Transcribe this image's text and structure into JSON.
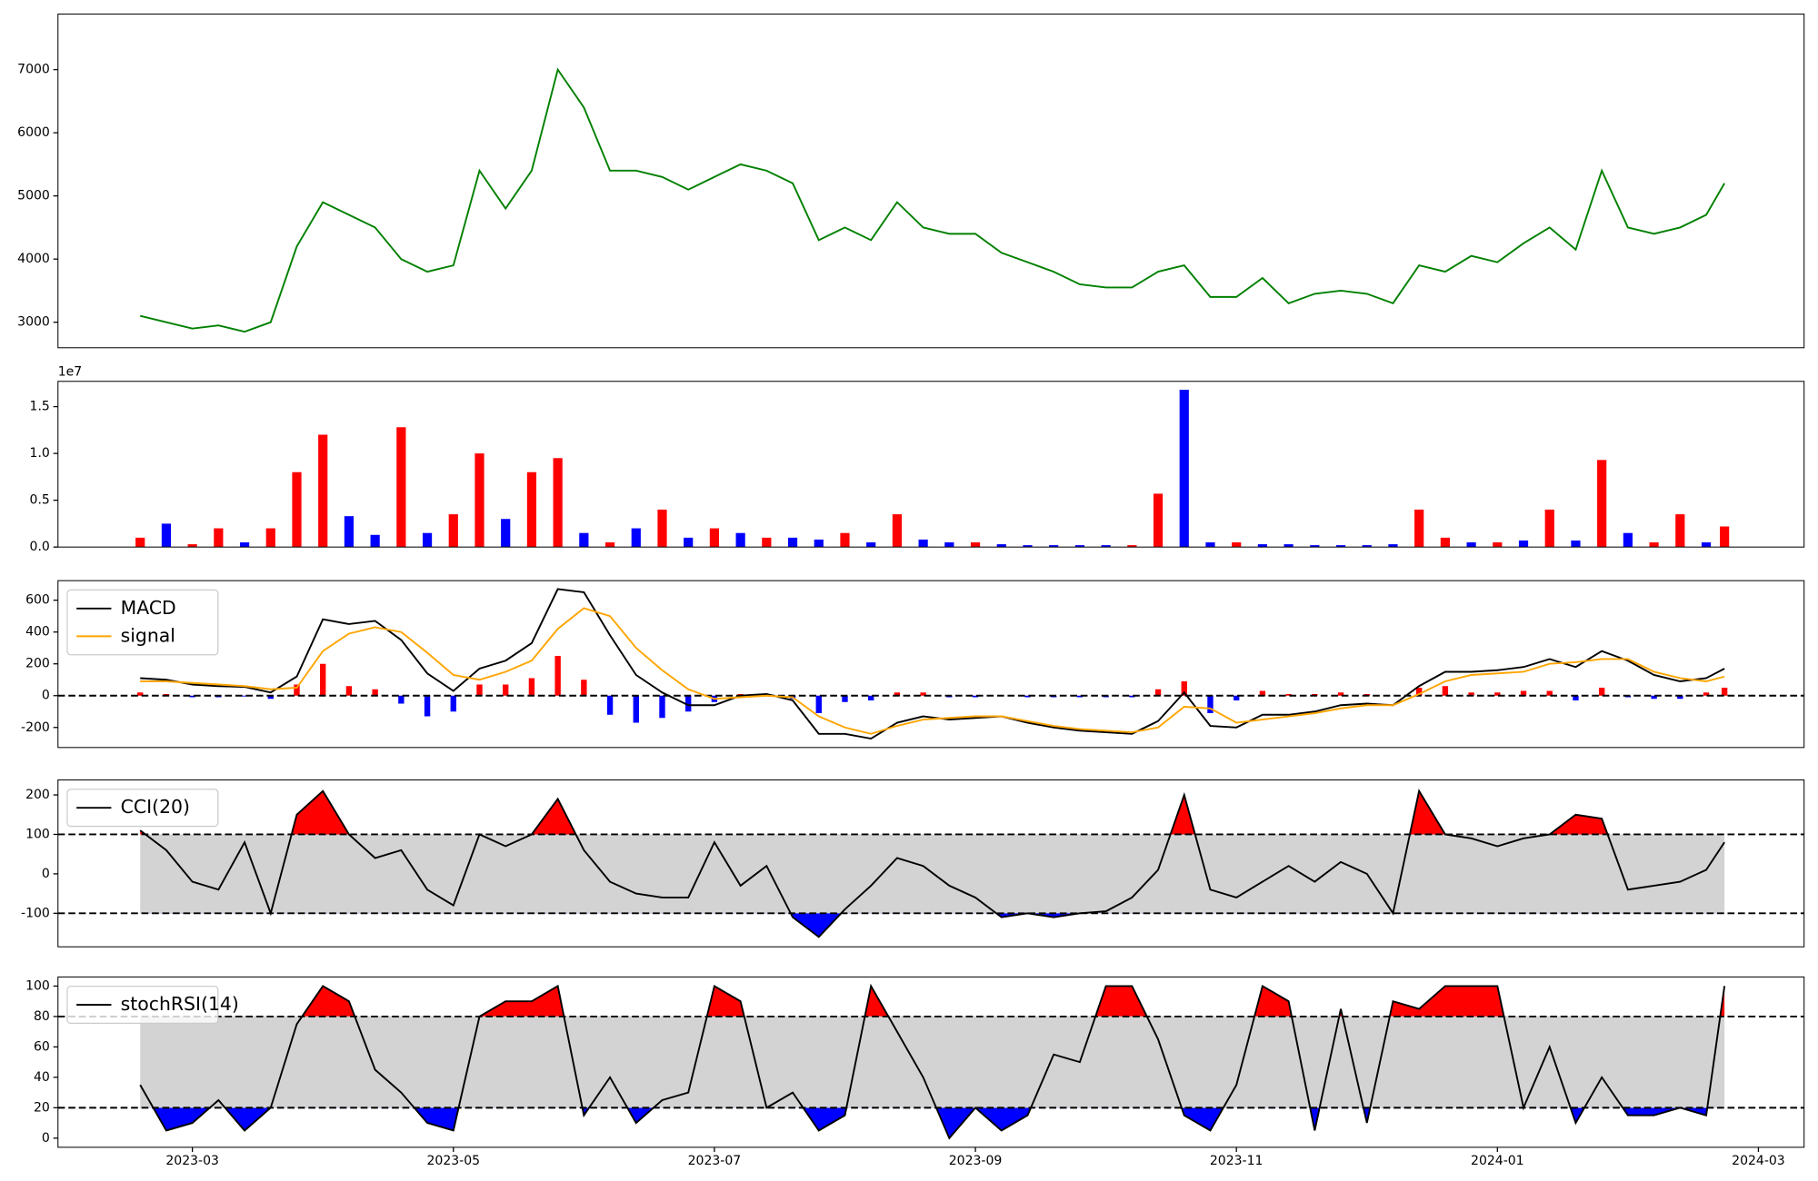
{
  "chart_data": [
    {
      "type": "line",
      "xlim": [
        1.97,
        15.35
      ],
      "x": [
        2.6,
        2.8,
        3.0,
        3.2,
        3.4,
        3.6,
        3.8,
        4.0,
        4.2,
        4.4,
        4.6,
        4.8,
        5.0,
        5.2,
        5.4,
        5.6,
        5.8,
        6.0,
        6.2,
        6.4,
        6.6,
        6.8,
        7.0,
        7.2,
        7.4,
        7.6,
        7.8,
        8.0,
        8.2,
        8.4,
        8.6,
        8.8,
        9.0,
        9.2,
        9.4,
        9.6,
        9.8,
        10.0,
        10.2,
        10.4,
        10.6,
        10.8,
        11.0,
        11.2,
        11.4,
        11.6,
        11.8,
        12.0,
        12.2,
        12.4,
        12.6,
        12.8,
        13.0,
        13.2,
        13.4,
        13.6,
        13.8,
        14.0,
        14.2,
        14.4,
        14.6,
        14.74
      ],
      "ylim": [
        2596,
        7880
      ],
      "yticks": [
        3000,
        4000,
        5000,
        6000,
        7000
      ],
      "series": [
        {
          "color": "green",
          "values": [
            3100,
            3000,
            2900,
            2950,
            2850,
            3000,
            4200,
            4900,
            4700,
            4500,
            4000,
            3800,
            3900,
            5400,
            4800,
            5400,
            7000,
            6400,
            5400,
            5400,
            5300,
            5100,
            5300,
            5500,
            5400,
            5200,
            4300,
            4500,
            4300,
            4900,
            4500,
            4400,
            4400,
            4100,
            3950,
            3800,
            3600,
            3550,
            3550,
            3800,
            3900,
            3400,
            3400,
            3700,
            3300,
            3450,
            3500,
            3450,
            3300,
            3900,
            3800,
            4050,
            3950,
            4250,
            4500,
            4150,
            5400,
            4500,
            4400,
            4500,
            4700,
            5200
          ]
        }
      ]
    },
    {
      "type": "bar",
      "xlim": [
        1.97,
        15.35
      ],
      "x": [
        2.6,
        2.8,
        3.0,
        3.2,
        3.4,
        3.6,
        3.8,
        4.0,
        4.2,
        4.4,
        4.6,
        4.8,
        5.0,
        5.2,
        5.4,
        5.6,
        5.8,
        6.0,
        6.2,
        6.4,
        6.6,
        6.8,
        7.0,
        7.2,
        7.4,
        7.6,
        7.8,
        8.0,
        8.2,
        8.4,
        8.6,
        8.8,
        9.0,
        9.2,
        9.4,
        9.6,
        9.8,
        10.0,
        10.2,
        10.4,
        10.6,
        10.8,
        11.0,
        11.2,
        11.4,
        11.6,
        11.8,
        12.0,
        12.2,
        12.4,
        12.6,
        12.8,
        13.0,
        13.2,
        13.4,
        13.6,
        13.8,
        14.0,
        14.2,
        14.4,
        14.6,
        14.74
      ],
      "ylim": [
        0,
        17700000
      ],
      "yticks": [
        {
          "value": 0,
          "label": "0.0"
        },
        {
          "value": 5000000,
          "label": "0.5"
        },
        {
          "value": 10000000,
          "label": "1.0"
        },
        {
          "value": 15000000,
          "label": "1.5"
        }
      ],
      "offset_label": "1e7",
      "values": [
        1000000,
        2500000,
        300000,
        2000000,
        500000,
        2000000,
        8000000,
        12000000,
        3300000,
        1300000,
        12800000,
        1500000,
        3500000,
        10000000,
        3000000,
        8000000,
        9500000,
        1500000,
        500000,
        2000000,
        4000000,
        1000000,
        2000000,
        1500000,
        1000000,
        1000000,
        800000,
        1500000,
        500000,
        3500000,
        800000,
        500000,
        500000,
        300000,
        200000,
        200000,
        200000,
        200000,
        200000,
        5700000,
        16800000,
        500000,
        500000,
        300000,
        300000,
        200000,
        200000,
        200000,
        300000,
        4000000,
        1000000,
        500000,
        500000,
        700000,
        4000000,
        700000,
        9300000,
        1500000,
        500000,
        3500000,
        500000,
        2200000
      ],
      "colors": [
        "red",
        "blue",
        "red",
        "red",
        "blue",
        "red",
        "red",
        "red",
        "blue",
        "blue",
        "red",
        "blue",
        "red",
        "red",
        "blue",
        "red",
        "red",
        "blue",
        "red",
        "blue",
        "red",
        "blue",
        "red",
        "blue",
        "red",
        "blue",
        "blue",
        "red",
        "blue",
        "red",
        "blue",
        "blue",
        "red",
        "blue",
        "blue",
        "blue",
        "blue",
        "blue",
        "red",
        "red",
        "blue",
        "blue",
        "red",
        "blue",
        "blue",
        "blue",
        "blue",
        "blue",
        "blue",
        "red",
        "red",
        "blue",
        "red",
        "blue",
        "red",
        "blue",
        "red",
        "blue",
        "red",
        "red",
        "blue",
        "red"
      ]
    },
    {
      "type": "line",
      "xlim": [
        1.97,
        15.35
      ],
      "x": [
        2.6,
        2.8,
        3.0,
        3.2,
        3.4,
        3.6,
        3.8,
        4.0,
        4.2,
        4.4,
        4.6,
        4.8,
        5.0,
        5.2,
        5.4,
        5.6,
        5.8,
        6.0,
        6.2,
        6.4,
        6.6,
        6.8,
        7.0,
        7.2,
        7.4,
        7.6,
        7.8,
        8.0,
        8.2,
        8.4,
        8.6,
        8.8,
        9.0,
        9.2,
        9.4,
        9.6,
        9.8,
        10.0,
        10.2,
        10.4,
        10.6,
        10.8,
        11.0,
        11.2,
        11.4,
        11.6,
        11.8,
        12.0,
        12.2,
        12.4,
        12.6,
        12.8,
        13.0,
        13.2,
        13.4,
        13.6,
        13.8,
        14.0,
        14.2,
        14.4,
        14.6,
        14.74
      ],
      "ylim": [
        -326,
        723
      ],
      "yticks": [
        -200,
        0,
        200,
        400,
        600
      ],
      "hlines": [
        0
      ],
      "legend": "upper left",
      "series": [
        {
          "name": "MACD",
          "color": "black",
          "values": [
            110,
            100,
            70,
            60,
            55,
            20,
            120,
            480,
            450,
            470,
            350,
            140,
            30,
            170,
            220,
            330,
            670,
            650,
            380,
            130,
            20,
            -60,
            -60,
            0,
            10,
            -30,
            -240,
            -240,
            -270,
            -170,
            -130,
            -150,
            -140,
            -130,
            -170,
            -200,
            -220,
            -230,
            -240,
            -160,
            20,
            -190,
            -200,
            -120,
            -120,
            -100,
            -60,
            -50,
            -60,
            60,
            150,
            150,
            160,
            180,
            230,
            180,
            280,
            220,
            130,
            90,
            110,
            170
          ]
        },
        {
          "name": "signal",
          "color": "orange",
          "values": [
            90,
            90,
            80,
            70,
            60,
            40,
            50,
            280,
            390,
            430,
            400,
            270,
            130,
            100,
            150,
            220,
            420,
            550,
            500,
            300,
            160,
            40,
            -20,
            -10,
            0,
            -10,
            -130,
            -200,
            -240,
            -190,
            -150,
            -140,
            -130,
            -130,
            -160,
            -190,
            -210,
            -220,
            -230,
            -200,
            -70,
            -80,
            -170,
            -150,
            -130,
            -110,
            -80,
            -60,
            -60,
            10,
            90,
            130,
            140,
            150,
            200,
            210,
            230,
            230,
            150,
            110,
            90,
            120
          ]
        }
      ],
      "histogram": {
        "pos_color": "red",
        "neg_color": "blue",
        "values": [
          20,
          10,
          -10,
          -10,
          -5,
          -20,
          70,
          200,
          60,
          40,
          -50,
          -130,
          -100,
          70,
          70,
          110,
          250,
          100,
          -120,
          -170,
          -140,
          -100,
          -40,
          10,
          10,
          -20,
          -110,
          -40,
          -30,
          20,
          20,
          -10,
          -10,
          0,
          -10,
          -10,
          -10,
          -10,
          -10,
          40,
          90,
          -110,
          -30,
          30,
          10,
          10,
          20,
          10,
          0,
          50,
          60,
          20,
          20,
          30,
          30,
          -30,
          50,
          -10,
          -20,
          -20,
          20,
          50
        ]
      }
    },
    {
      "type": "line",
      "xlim": [
        1.97,
        15.35
      ],
      "x": [
        2.6,
        2.8,
        3.0,
        3.2,
        3.4,
        3.6,
        3.8,
        4.0,
        4.2,
        4.4,
        4.6,
        4.8,
        5.0,
        5.2,
        5.4,
        5.6,
        5.8,
        6.0,
        6.2,
        6.4,
        6.6,
        6.8,
        7.0,
        7.2,
        7.4,
        7.6,
        7.8,
        8.0,
        8.2,
        8.4,
        8.6,
        8.8,
        9.0,
        9.2,
        9.4,
        9.6,
        9.8,
        10.0,
        10.2,
        10.4,
        10.6,
        10.8,
        11.0,
        11.2,
        11.4,
        11.6,
        11.8,
        12.0,
        12.2,
        12.4,
        12.6,
        12.8,
        13.0,
        13.2,
        13.4,
        13.6,
        13.8,
        14.0,
        14.2,
        14.4,
        14.6,
        14.74
      ],
      "ylim": [
        -185,
        238
      ],
      "yticks": [
        -100,
        0,
        100,
        200
      ],
      "band": [
        -100,
        100
      ],
      "band_color": "#d3d3d3",
      "above_color": "red",
      "below_color": "blue",
      "legend": "upper left",
      "series": [
        {
          "name": "CCI(20)",
          "color": "black",
          "values": [
            110,
            60,
            -20,
            -40,
            80,
            -100,
            150,
            210,
            100,
            40,
            60,
            -40,
            -80,
            100,
            70,
            100,
            190,
            60,
            -20,
            -50,
            -60,
            -60,
            80,
            -30,
            20,
            -110,
            -160,
            -90,
            -30,
            40,
            20,
            -30,
            -60,
            -110,
            -100,
            -110,
            -100,
            -95,
            -60,
            10,
            200,
            -40,
            -60,
            -20,
            20,
            -20,
            30,
            0,
            -100,
            210,
            100,
            90,
            70,
            90,
            100,
            150,
            140,
            -40,
            -30,
            -20,
            10,
            80
          ]
        }
      ]
    },
    {
      "type": "line",
      "xlim": [
        1.97,
        15.35
      ],
      "xticks": [
        {
          "value": 3,
          "label": "2023-03"
        },
        {
          "value": 5,
          "label": "2023-05"
        },
        {
          "value": 7,
          "label": "2023-07"
        },
        {
          "value": 9,
          "label": "2023-09"
        },
        {
          "value": 11,
          "label": "2023-11"
        },
        {
          "value": 13,
          "label": "2024-01"
        },
        {
          "value": 15,
          "label": "2024-03"
        }
      ],
      "x": [
        2.6,
        2.8,
        3.0,
        3.2,
        3.4,
        3.6,
        3.8,
        4.0,
        4.2,
        4.4,
        4.6,
        4.8,
        5.0,
        5.2,
        5.4,
        5.6,
        5.8,
        6.0,
        6.2,
        6.4,
        6.6,
        6.8,
        7.0,
        7.2,
        7.4,
        7.6,
        7.8,
        8.0,
        8.2,
        8.4,
        8.6,
        8.8,
        9.0,
        9.2,
        9.4,
        9.6,
        9.8,
        10.0,
        10.2,
        10.4,
        10.6,
        10.8,
        11.0,
        11.2,
        11.4,
        11.6,
        11.8,
        12.0,
        12.2,
        12.4,
        12.6,
        12.8,
        13.0,
        13.2,
        13.4,
        13.6,
        13.8,
        14.0,
        14.2,
        14.4,
        14.6,
        14.74
      ],
      "ylim": [
        -6,
        106
      ],
      "yticks": [
        0,
        20,
        40,
        60,
        80,
        100
      ],
      "band": [
        20,
        80
      ],
      "band_color": "#d3d3d3",
      "above_color": "red",
      "below_color": "blue",
      "legend": "upper left",
      "series": [
        {
          "name": "stochRSI(14)",
          "color": "black",
          "values": [
            35,
            5,
            10,
            25,
            5,
            20,
            75,
            100,
            90,
            45,
            30,
            10,
            5,
            80,
            90,
            90,
            100,
            15,
            40,
            10,
            25,
            30,
            100,
            90,
            20,
            30,
            5,
            15,
            100,
            70,
            40,
            0,
            20,
            5,
            15,
            55,
            50,
            100,
            100,
            65,
            15,
            5,
            35,
            100,
            90,
            5,
            85,
            10,
            90,
            85,
            100,
            100,
            100,
            20,
            60,
            10,
            40,
            15,
            15,
            20,
            15,
            100
          ]
        }
      ]
    }
  ]
}
